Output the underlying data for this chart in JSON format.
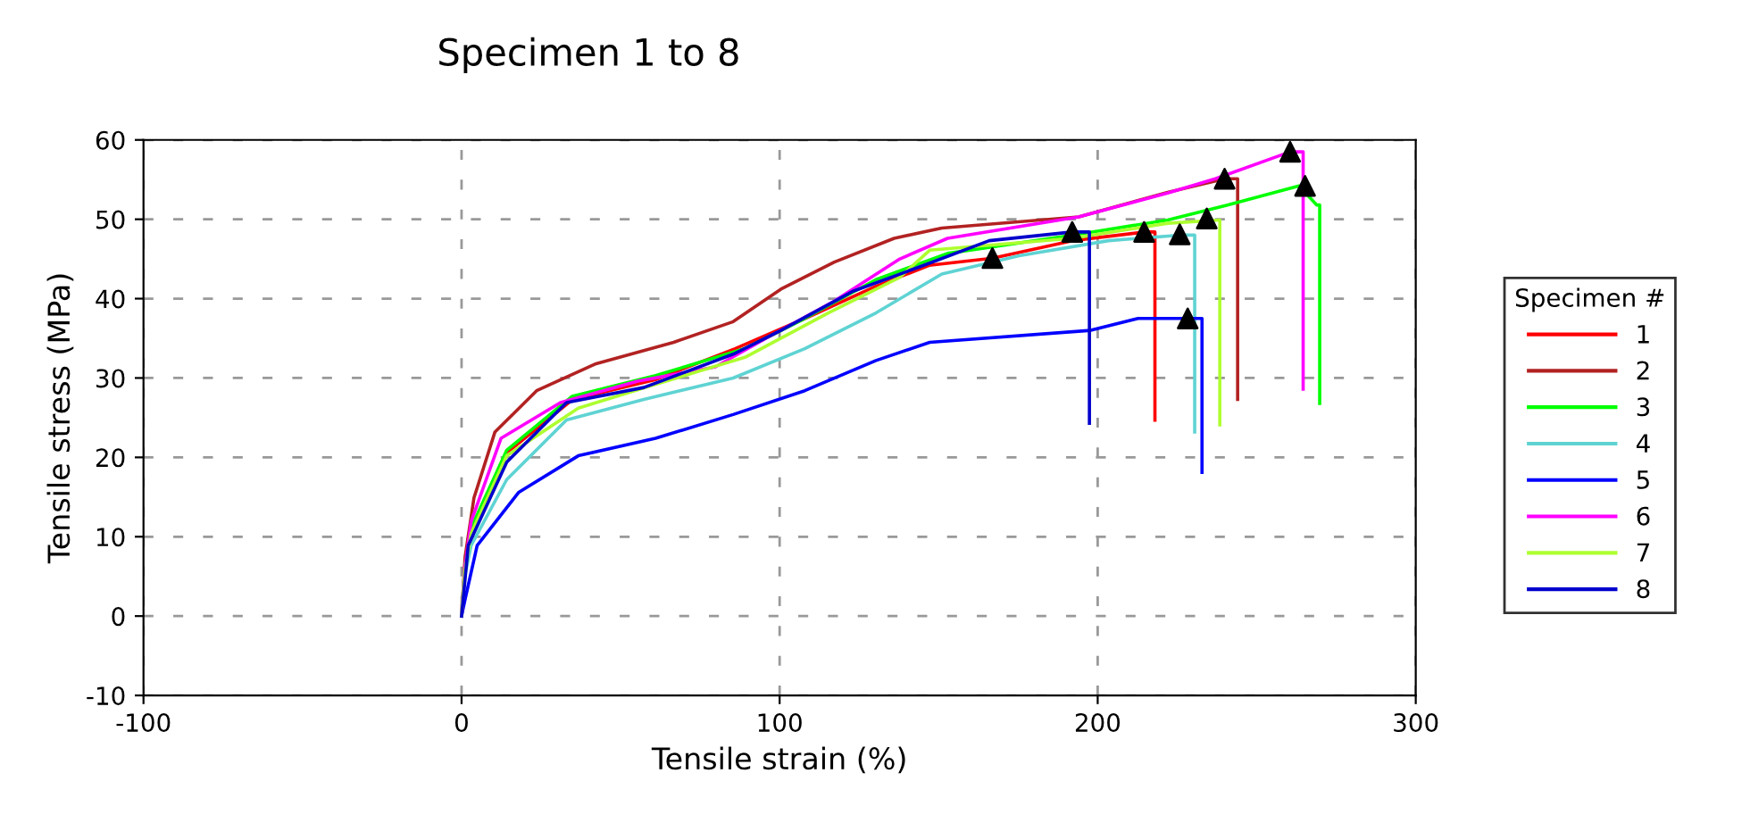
{
  "chart_data": {
    "type": "line",
    "title": "Specimen 1 to 8",
    "xlabel": "Tensile strain (%)",
    "ylabel": "Tensile stress (MPa)",
    "legend_title": "Specimen #",
    "xlim": [
      -100,
      300
    ],
    "xticks": [
      -100,
      0,
      100,
      200,
      300
    ],
    "ylim": [
      -10,
      60
    ],
    "yticks": [
      -10,
      0,
      10,
      20,
      30,
      40,
      50,
      60
    ],
    "grid": true,
    "legend": "right",
    "marker": "none",
    "line_style": "solid",
    "series": [
      {
        "name": "1",
        "color": "#ff0000",
        "x": [
          3,
          14,
          35,
          61,
          86,
          108,
          130,
          147,
          167,
          192,
          215,
          218,
          218
        ],
        "values": [
          11,
          20.5,
          27.3,
          29.8,
          33.7,
          37.5,
          41.5,
          44.2,
          45.1,
          47.3,
          48.4,
          48.4,
          24.7
        ]
      },
      {
        "name": "2",
        "color": "#b22222",
        "x": [
          0,
          1.1,
          3.9,
          10.5,
          23.6,
          42.3,
          66.7,
          85.4,
          100.4,
          117.2,
          136,
          151,
          194,
          222,
          240,
          244,
          244
        ],
        "values": [
          0,
          7.4,
          14.9,
          23.2,
          28.4,
          31.8,
          34.5,
          37.1,
          41.2,
          44.6,
          47.6,
          48.9,
          50.3,
          53.4,
          55.1,
          55.1,
          27.3
        ]
      },
      {
        "name": "3",
        "color": "#00ff00",
        "x": [
          0,
          1,
          3,
          14.2,
          34.8,
          61,
          89.1,
          107.9,
          130.3,
          152.8,
          192,
          222,
          240.8,
          263.3,
          268.9,
          269.8,
          269.8
        ],
        "values": [
          0,
          6,
          11.1,
          20.9,
          27.7,
          30.3,
          33.7,
          37.5,
          42.4,
          45.7,
          48,
          49.9,
          51.8,
          54.2,
          51.8,
          51.8,
          26.8
        ]
      },
      {
        "name": "4",
        "color": "#5fd3d3",
        "x": [
          0,
          1,
          3,
          14.2,
          33,
          57.3,
          85.4,
          107.9,
          130.3,
          151,
          175.3,
          203.4,
          225.8,
          230.5,
          230.5
        ],
        "values": [
          0,
          5,
          8.9,
          17.2,
          24.7,
          27.3,
          30,
          33.7,
          38.2,
          43.1,
          45.4,
          47.3,
          48,
          48,
          23.2
        ]
      },
      {
        "name": "5",
        "color": "#0000ff",
        "x": [
          0,
          1.1,
          4.9,
          18,
          36.7,
          61,
          85.4,
          107.9,
          130.3,
          147.2,
          197.8,
          212.7,
          228.3,
          232.8,
          232.8
        ],
        "values": [
          0,
          2.1,
          8.9,
          15.6,
          20.2,
          22.4,
          25.4,
          28.4,
          32.2,
          34.5,
          36,
          37.5,
          37.5,
          37.5,
          18.1
        ]
      },
      {
        "name": "6",
        "color": "#ff00ff",
        "x": [
          0,
          1,
          3,
          12.4,
          31.1,
          55.4,
          79.8,
          96.6,
          117.2,
          137.8,
          152.8,
          194,
          222,
          237,
          260.5,
          264.6,
          264.6
        ],
        "values": [
          0,
          6,
          11.9,
          22.4,
          26.9,
          29.6,
          31.4,
          35.2,
          39.7,
          45,
          47.6,
          50.3,
          53.3,
          55.1,
          58.5,
          58.5,
          28.6
        ]
      },
      {
        "name": "7",
        "color": "#adff2f",
        "x": [
          0,
          1,
          3,
          14.2,
          36.7,
          61,
          89.1,
          115.3,
          137.8,
          147.2,
          192,
          222,
          238.4,
          238.4
        ],
        "values": [
          0,
          5.5,
          10.4,
          20.2,
          26.2,
          29.2,
          32.6,
          38.2,
          42.7,
          46.1,
          47.6,
          49.5,
          49.9,
          24.1
        ]
      },
      {
        "name": "8",
        "color": "#0000cc",
        "x": [
          0,
          2.1,
          14.2,
          33,
          57.3,
          85.4,
          100.4,
          122.9,
          145.3,
          165.9,
          192,
          197.4,
          197.4
        ],
        "values": [
          0,
          8.9,
          19.4,
          26.9,
          28.8,
          33,
          36,
          40.9,
          44.2,
          47.3,
          48.4,
          48.4,
          24.3
        ]
      },
      {
        "type": "scatter",
        "marker": "triangle",
        "color": "#000000",
        "x": [
          166.9,
          192,
          214.6,
          225.8,
          228.3,
          234.3,
          239.9,
          260.5,
          265.2
        ],
        "values": [
          45.1,
          48.4,
          48.4,
          48.1,
          37.5,
          50.1,
          55.1,
          58.5,
          54.2
        ]
      }
    ]
  }
}
